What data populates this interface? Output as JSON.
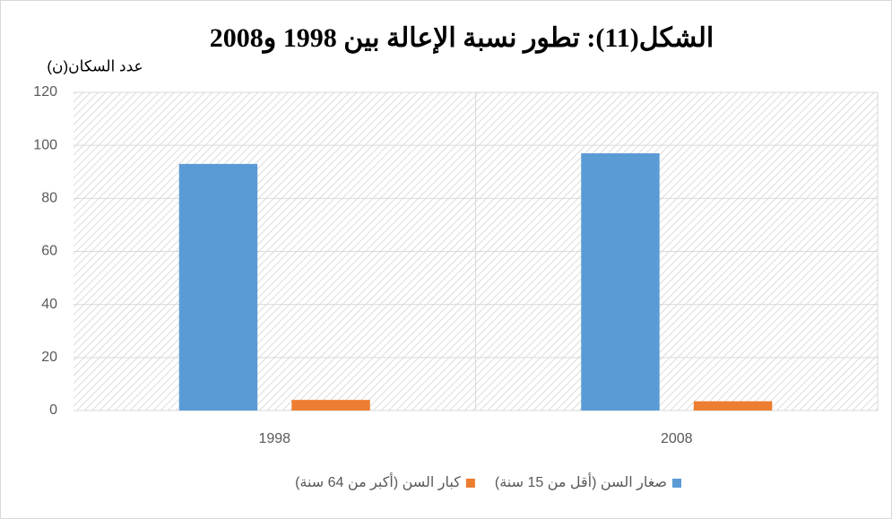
{
  "chart_data": {
    "type": "bar",
    "title": "الشكل(11): تطور نسبة الإعالة بين 1998 و2008",
    "ylabel": "عدد السكان(ن)",
    "categories": [
      "1998",
      "2008"
    ],
    "series": [
      {
        "name": "صغار السن (أقل من 15 سنة)",
        "color": "#5b9bd5",
        "values": [
          93,
          97
        ]
      },
      {
        "name": "كبار السن (أكبر من 64 سنة)",
        "color": "#ed7d31",
        "values": [
          4,
          3.5
        ]
      }
    ],
    "ylim": [
      0,
      120
    ],
    "yticks": [
      0,
      20,
      40,
      60,
      80,
      100,
      120
    ],
    "grid": true,
    "legend": "bottom"
  }
}
